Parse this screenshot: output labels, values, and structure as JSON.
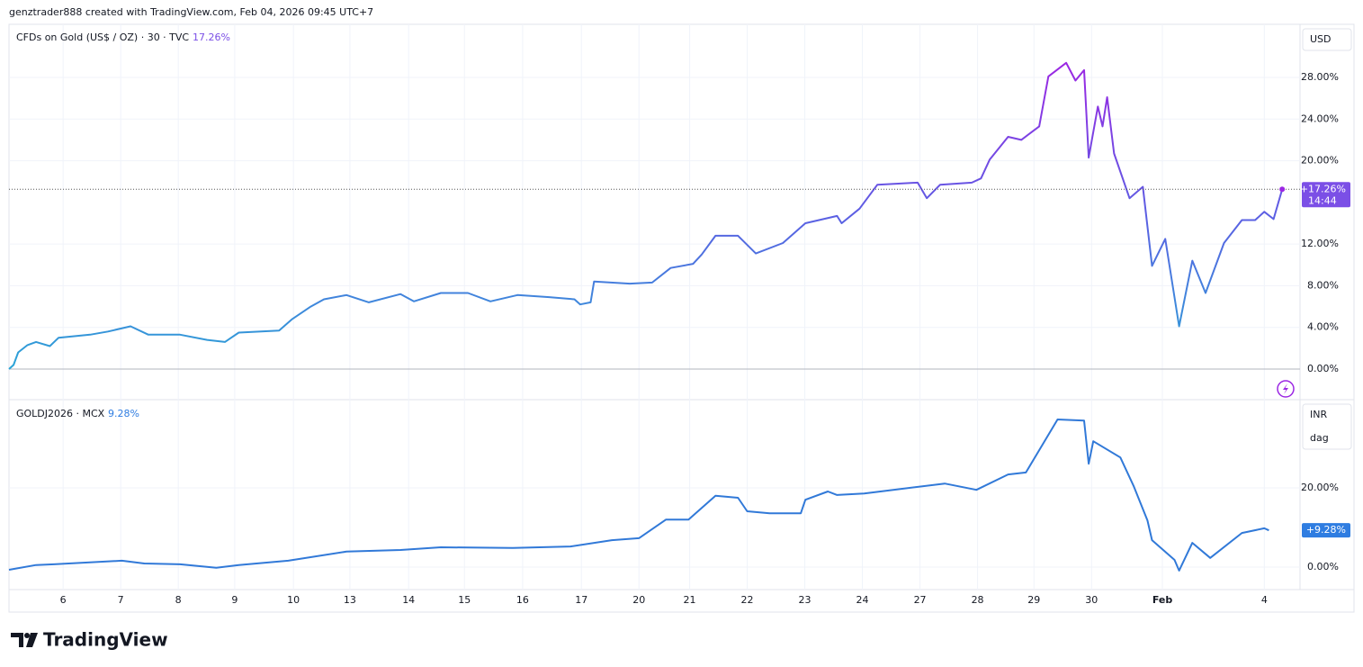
{
  "header": "genztrader888 created with TradingView.com, Feb 04, 2026 09:45 UTC+7",
  "footer": "TradingView",
  "chart_data": [
    {
      "type": "line",
      "title": "CFDs on Gold (US$ / OZ) · 30 · TVC",
      "legend_value": "17.26%",
      "currency": "USD",
      "series": [
        {
          "name": "CFDs on Gold (US$ / OZ)",
          "colors": [
            "#2aa5d6",
            "#5b5fe3",
            "#9b27e3"
          ],
          "x": [
            0.06,
            0.14,
            0.22,
            0.38,
            0.53,
            0.77,
            0.92,
            1.47,
            1.78,
            2.17,
            2.48,
            3.03,
            3.5,
            3.81,
            4.05,
            4.75,
            4.98,
            5.3,
            5.53,
            5.92,
            6.31,
            6.86,
            7.09,
            7.56,
            8.03,
            8.42,
            8.89,
            9.44,
            9.88,
            9.98,
            10.16,
            10.22,
            10.84,
            11.23,
            11.55,
            11.94,
            12.09,
            12.33,
            12.72,
            13.03,
            13.5,
            13.89,
            14.44,
            14.52,
            14.83,
            15.14,
            15.84,
            16.0,
            16.23,
            16.78,
            16.94,
            17.09,
            17.41,
            17.64,
            17.95,
            18.11,
            18.42,
            18.58,
            18.73,
            18.81,
            18.97,
            19.05,
            19.13,
            19.25,
            19.52,
            19.75,
            19.91,
            20.14,
            20.38,
            20.61,
            20.84,
            21.16,
            21.47,
            21.7,
            21.86,
            22.02,
            22.17
          ],
          "values": [
            0,
            0.4,
            1.6,
            2.3,
            2.6,
            2.2,
            3.0,
            3.3,
            3.6,
            4.1,
            3.3,
            3.3,
            2.8,
            2.6,
            3.5,
            3.7,
            4.8,
            6.0,
            6.7,
            7.1,
            6.4,
            7.2,
            6.5,
            7.3,
            7.3,
            6.5,
            7.1,
            6.9,
            6.7,
            6.2,
            6.4,
            8.4,
            8.2,
            8.3,
            9.7,
            10.1,
            11.0,
            12.8,
            12.8,
            11.1,
            12.1,
            14.0,
            14.7,
            14.0,
            15.4,
            17.7,
            17.9,
            16.4,
            17.7,
            17.9,
            18.3,
            20.1,
            22.3,
            22.0,
            23.3,
            28.1,
            29.4,
            27.7,
            28.7,
            20.3,
            25.2,
            23.3,
            26.1,
            20.7,
            16.4,
            17.5,
            9.9,
            12.5,
            4.1,
            10.4,
            7.3,
            12.1,
            14.3,
            14.3,
            15.1,
            14.4,
            17.26
          ]
        }
      ],
      "last_label": "+17.26%",
      "countdown": "14:44",
      "label_color": "#7b4fe6",
      "ylim": [
        -2.94,
        33.1
      ],
      "yticks": [
        {
          "value": 0,
          "label": "0.00%"
        },
        {
          "value": 4,
          "label": "4.00%"
        },
        {
          "value": 8,
          "label": "8.00%"
        },
        {
          "value": 12,
          "label": "12.00%"
        },
        {
          "value": 20,
          "label": "20.00%"
        },
        {
          "value": 24,
          "label": "24.00%"
        },
        {
          "value": 28,
          "label": "28.00%"
        }
      ],
      "grid": true
    },
    {
      "type": "line",
      "title": "GOLDJ2026 · MCX",
      "legend_value": "9.28%",
      "currency": "INR",
      "unit": "dag",
      "series": [
        {
          "name": "GOLDJ2026",
          "color": "#3179d8",
          "x": [
            0.06,
            0.53,
            0.84,
            2.02,
            2.41,
            3.03,
            3.66,
            4.05,
            4.91,
            5.92,
            6.86,
            7.56,
            8.81,
            9.81,
            10.53,
            11.0,
            11.47,
            11.86,
            12.33,
            12.72,
            12.88,
            13.27,
            13.81,
            13.89,
            14.28,
            14.44,
            14.91,
            16.31,
            16.86,
            17.41,
            17.72,
            18.27,
            18.73,
            18.81,
            18.89,
            19.36,
            19.59,
            19.83,
            19.91,
            20.3,
            20.38,
            20.61,
            20.92,
            21.47,
            21.86,
            21.94
          ],
          "values": [
            -0.7,
            0.5,
            0.7,
            1.6,
            0.9,
            0.7,
            -0.2,
            0.5,
            1.6,
            3.9,
            4.3,
            5.0,
            4.8,
            5.2,
            6.8,
            7.3,
            12.0,
            12.0,
            18.0,
            17.5,
            14.1,
            13.6,
            13.6,
            17.0,
            19.1,
            18.2,
            18.6,
            21.1,
            19.5,
            23.4,
            23.9,
            37.3,
            37.0,
            26.1,
            31.8,
            27.7,
            20.5,
            11.8,
            6.8,
            1.8,
            -0.9,
            6.1,
            2.3,
            8.6,
            9.8,
            9.28
          ]
        }
      ],
      "last_label": "+9.28%",
      "label_color": "#2f7de1",
      "ylim": [
        -5.7,
        42.3
      ],
      "yticks": [
        {
          "value": 0,
          "label": "0.00%"
        },
        {
          "value": 20,
          "label": "20.00%"
        }
      ],
      "grid": true,
      "xlim": [
        0.06,
        22.48
      ],
      "xticks": [
        {
          "value": 1,
          "label": "6"
        },
        {
          "value": 2,
          "label": "7"
        },
        {
          "value": 3,
          "label": "8"
        },
        {
          "value": 3.98,
          "label": "9"
        },
        {
          "value": 5,
          "label": "10"
        },
        {
          "value": 5.98,
          "label": "13"
        },
        {
          "value": 7,
          "label": "14"
        },
        {
          "value": 7.97,
          "label": "15"
        },
        {
          "value": 8.98,
          "label": "16"
        },
        {
          "value": 10,
          "label": "17"
        },
        {
          "value": 11,
          "label": "20"
        },
        {
          "value": 11.88,
          "label": "21"
        },
        {
          "value": 12.88,
          "label": "22"
        },
        {
          "value": 13.88,
          "label": "23"
        },
        {
          "value": 14.88,
          "label": "24"
        },
        {
          "value": 15.88,
          "label": "27"
        },
        {
          "value": 16.88,
          "label": "28"
        },
        {
          "value": 17.86,
          "label": "29"
        },
        {
          "value": 18.86,
          "label": "30"
        },
        {
          "value": 20.09,
          "label": "Feb"
        },
        {
          "value": 21.86,
          "label": "4"
        }
      ]
    }
  ]
}
